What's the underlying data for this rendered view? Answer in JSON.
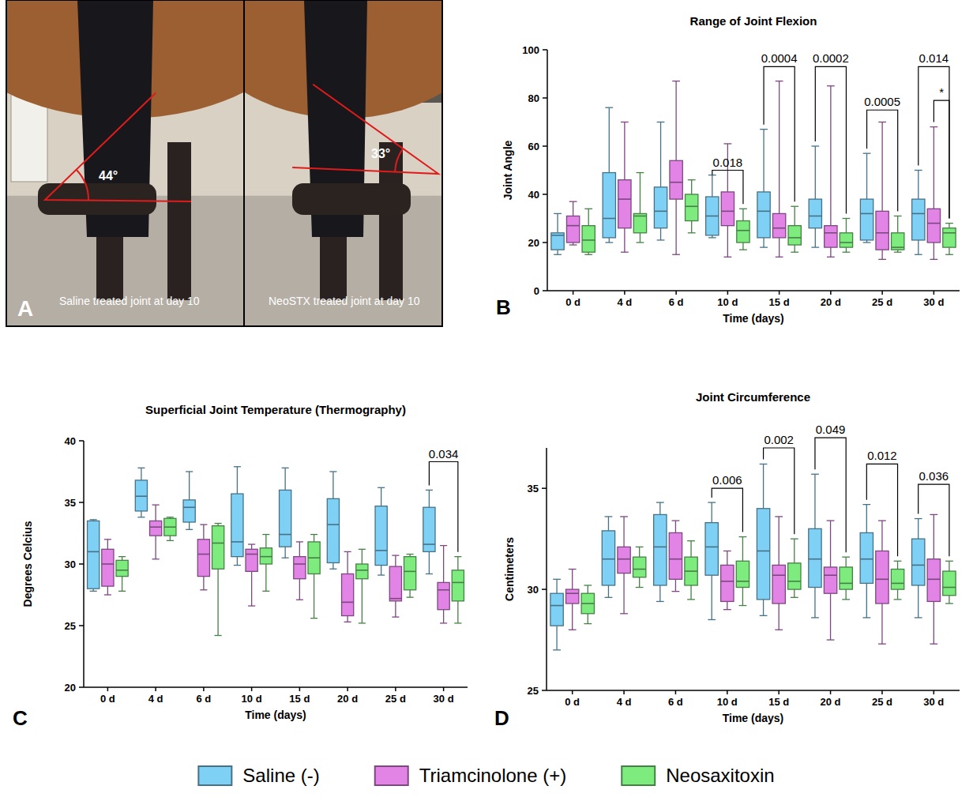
{
  "photo_panel": {
    "letter": "A",
    "photos": [
      {
        "caption": "Saline treated joint at day 10",
        "angle": 44,
        "angle_label": "44°"
      },
      {
        "caption": "NeoSTX treated joint at day 10",
        "angle": 33,
        "angle_label": "33°"
      }
    ]
  },
  "chart_data": [
    {
      "type": "box",
      "panel": "B",
      "title": "Range of Joint Flexion",
      "xlabel": "Time (days)",
      "ylabel": "Joint Angle",
      "categories": [
        "0 d",
        "4 d",
        "6 d",
        "10 d",
        "15 d",
        "20 d",
        "25 d",
        "30 d"
      ],
      "ylim": [
        0,
        100
      ],
      "yticks": [
        0,
        20,
        40,
        60,
        80,
        100
      ],
      "legend": "bottom",
      "series": [
        {
          "name": "Saline (-)",
          "color": "#7fd0f5",
          "min": [
            15,
            20,
            21,
            22,
            18,
            18,
            20,
            15
          ],
          "q1": [
            17,
            22,
            26,
            23,
            22,
            26,
            21,
            21
          ],
          "median": [
            23,
            30,
            33,
            31,
            33,
            31,
            32,
            32
          ],
          "q3": [
            24,
            49,
            43,
            39,
            41,
            38,
            38,
            38
          ],
          "max": [
            32,
            76,
            70,
            48,
            67,
            60,
            57,
            50
          ]
        },
        {
          "name": "Triamcinolone (+)",
          "color": "#e283e6",
          "min": [
            19,
            16,
            15,
            14,
            14,
            14,
            13,
            13
          ],
          "q1": [
            20,
            26,
            38,
            27,
            22,
            18,
            17,
            20
          ],
          "median": [
            27,
            38,
            45,
            33,
            26,
            24,
            24,
            28
          ],
          "q3": [
            31,
            46,
            54,
            41,
            32,
            27,
            33,
            34
          ],
          "max": [
            37,
            70,
            87,
            61,
            87,
            85,
            70,
            68
          ]
        },
        {
          "name": "Neosaxitoxin",
          "color": "#7deb7d",
          "min": [
            15,
            20,
            24,
            17,
            16,
            16,
            16,
            15
          ],
          "q1": [
            16,
            24,
            29,
            20,
            19,
            18,
            17,
            18
          ],
          "median": [
            21,
            31,
            35,
            25,
            22,
            20,
            18,
            24
          ],
          "q3": [
            27,
            32,
            40,
            29,
            27,
            24,
            24,
            26
          ],
          "max": [
            34,
            49,
            46,
            34,
            35,
            30,
            31,
            28
          ]
        }
      ],
      "annotations": [
        {
          "x": "10 d",
          "from": "Saline (-)",
          "to": "Neosaxitoxin",
          "y": 50,
          "text": "0.018"
        },
        {
          "x": "15 d",
          "from": "Saline (-)",
          "to": "Neosaxitoxin",
          "y": 93,
          "text": "0.0004"
        },
        {
          "x": "20 d",
          "from": "Saline (-)",
          "to": "Neosaxitoxin",
          "y": 93,
          "text": "0.0002"
        },
        {
          "x": "25 d",
          "from": "Saline (-)",
          "to": "Neosaxitoxin",
          "y": 75,
          "text": "0.0005"
        },
        {
          "x": "30 d",
          "from": "Saline (-)",
          "to": "Neosaxitoxin",
          "y": 93,
          "text": "0.014"
        },
        {
          "x": "30 d",
          "from": "Triamcinolone (+)",
          "to": "Neosaxitoxin",
          "y": 79,
          "text": "*"
        }
      ]
    },
    {
      "type": "box",
      "panel": "C",
      "title": "Superficial Joint Temperature (Thermography)",
      "xlabel": "Time (days)",
      "ylabel": "Degrees Celcius",
      "categories": [
        "0 d",
        "4 d",
        "6 d",
        "10 d",
        "15 d",
        "20 d",
        "25 d",
        "30 d"
      ],
      "ylim": [
        20,
        40
      ],
      "yticks": [
        20,
        25,
        30,
        35,
        40
      ],
      "series": [
        {
          "name": "Saline (-)",
          "color": "#7fd0f5",
          "min": [
            27.8,
            33.8,
            32.8,
            29.9,
            30.5,
            29.6,
            29.1,
            29.2
          ],
          "q1": [
            28,
            34.3,
            33.4,
            30.6,
            31.4,
            30.1,
            29.9,
            31
          ],
          "median": [
            31,
            35.5,
            34.6,
            31.8,
            32.4,
            33.2,
            31.1,
            31.6
          ],
          "q3": [
            33.5,
            36.8,
            35.2,
            35.7,
            36,
            35.3,
            34.7,
            34.6
          ],
          "max": [
            33.6,
            37.8,
            37.5,
            37.9,
            37.8,
            37.5,
            36.2,
            36
          ]
        },
        {
          "name": "Triamcinolone (+)",
          "color": "#e283e6",
          "min": [
            27.5,
            30.4,
            27.9,
            26.6,
            27.1,
            25.3,
            25.7,
            25.2
          ],
          "q1": [
            28.2,
            32.3,
            29,
            29.4,
            28.8,
            25.8,
            27,
            26.3
          ],
          "median": [
            30,
            33,
            30.8,
            30.8,
            30,
            26.9,
            27.2,
            27.9
          ],
          "q3": [
            31.2,
            33.5,
            32,
            31.2,
            30.6,
            29.2,
            29.8,
            28.5
          ],
          "max": [
            32,
            34.8,
            33.2,
            31.6,
            31.8,
            31,
            30.7,
            31.5
          ]
        },
        {
          "name": "Neosaxitoxin",
          "color": "#7deb7d",
          "min": [
            27.8,
            31.9,
            24.2,
            27.8,
            25.6,
            25.2,
            27.3,
            25.2
          ],
          "q1": [
            29,
            32.3,
            29.6,
            30,
            29.2,
            28.8,
            27.9,
            27
          ],
          "median": [
            29.5,
            33,
            31.7,
            30.6,
            30.5,
            29.5,
            29.4,
            28.5
          ],
          "q3": [
            30.3,
            33.7,
            33.1,
            31.3,
            31.8,
            30,
            30.6,
            29.5
          ],
          "max": [
            30.6,
            33.8,
            33.3,
            32.4,
            32.4,
            31.2,
            30.8,
            30.6
          ]
        }
      ],
      "annotations": [
        {
          "x": "30 d",
          "from": "Saline (-)",
          "to": "Neosaxitoxin",
          "y": 38.3,
          "text": "0.034"
        }
      ]
    },
    {
      "type": "box",
      "panel": "D",
      "title": "Joint Circumference",
      "xlabel": "Time (days)",
      "ylabel": "Centimeters",
      "categories": [
        "0 d",
        "4 d",
        "6 d",
        "10 d",
        "15 d",
        "20 d",
        "25 d",
        "30 d"
      ],
      "ylim": [
        25,
        37
      ],
      "yticks": [
        25,
        30,
        35
      ],
      "series": [
        {
          "name": "Saline (-)",
          "color": "#7fd0f5",
          "min": [
            27,
            29.6,
            29.4,
            28.5,
            28.7,
            28.6,
            28.6,
            28.6
          ],
          "q1": [
            28.2,
            30.2,
            30.2,
            30.7,
            29.5,
            30.1,
            30.3,
            30.2
          ],
          "median": [
            29.2,
            31.5,
            32.1,
            32.1,
            31.9,
            31.5,
            31.5,
            31.2
          ],
          "q3": [
            29.8,
            32.9,
            33.7,
            33.3,
            34,
            33,
            32.8,
            32.5
          ],
          "max": [
            30.5,
            33.6,
            34.3,
            34.3,
            36.2,
            35.7,
            34.2,
            33.5
          ]
        },
        {
          "name": "Triamcinolone (+)",
          "color": "#e283e6",
          "min": [
            28,
            28.8,
            29.9,
            29,
            28,
            27.5,
            27.3,
            27.3
          ],
          "q1": [
            29.3,
            30.8,
            30.5,
            29.4,
            29.3,
            29.8,
            29.3,
            29.4
          ],
          "median": [
            29.8,
            31.5,
            31.5,
            30.4,
            30.7,
            30.7,
            30.5,
            30.5
          ],
          "q3": [
            30,
            32.1,
            32.8,
            31.2,
            31.2,
            31.1,
            31.9,
            31.5
          ],
          "max": [
            31,
            33.6,
            33.4,
            31.9,
            33.6,
            33.4,
            33.4,
            33.7
          ]
        },
        {
          "name": "Neosaxitoxin",
          "color": "#7deb7d",
          "min": [
            28.3,
            30.1,
            29.5,
            29.2,
            29.6,
            29.5,
            29.5,
            29.3
          ],
          "q1": [
            28.8,
            30.6,
            30.2,
            30.1,
            30,
            30,
            30,
            29.7
          ],
          "median": [
            29.3,
            31,
            30.9,
            30.4,
            30.4,
            30.3,
            30.3,
            30.1
          ],
          "q3": [
            29.8,
            31.6,
            31.6,
            31.4,
            31.3,
            31.1,
            31,
            30.9
          ],
          "max": [
            30.2,
            32.1,
            32.4,
            32.6,
            32.5,
            31.6,
            31.4,
            31.4
          ]
        }
      ],
      "annotations": [
        {
          "x": "10 d",
          "from": "Saline (-)",
          "to": "Neosaxitoxin",
          "y": 35,
          "text": "0.006"
        },
        {
          "x": "15 d",
          "from": "Saline (-)",
          "to": "Neosaxitoxin",
          "y": 37,
          "text": "0.002"
        },
        {
          "x": "20 d",
          "from": "Saline (-)",
          "to": "Neosaxitoxin",
          "y": 37.5,
          "text": "0.049"
        },
        {
          "x": "25 d",
          "from": "Saline (-)",
          "to": "Neosaxitoxin",
          "y": 36.2,
          "text": "0.012"
        },
        {
          "x": "30 d",
          "from": "Saline (-)",
          "to": "Neosaxitoxin",
          "y": 35.2,
          "text": "0.036"
        }
      ]
    }
  ]
}
